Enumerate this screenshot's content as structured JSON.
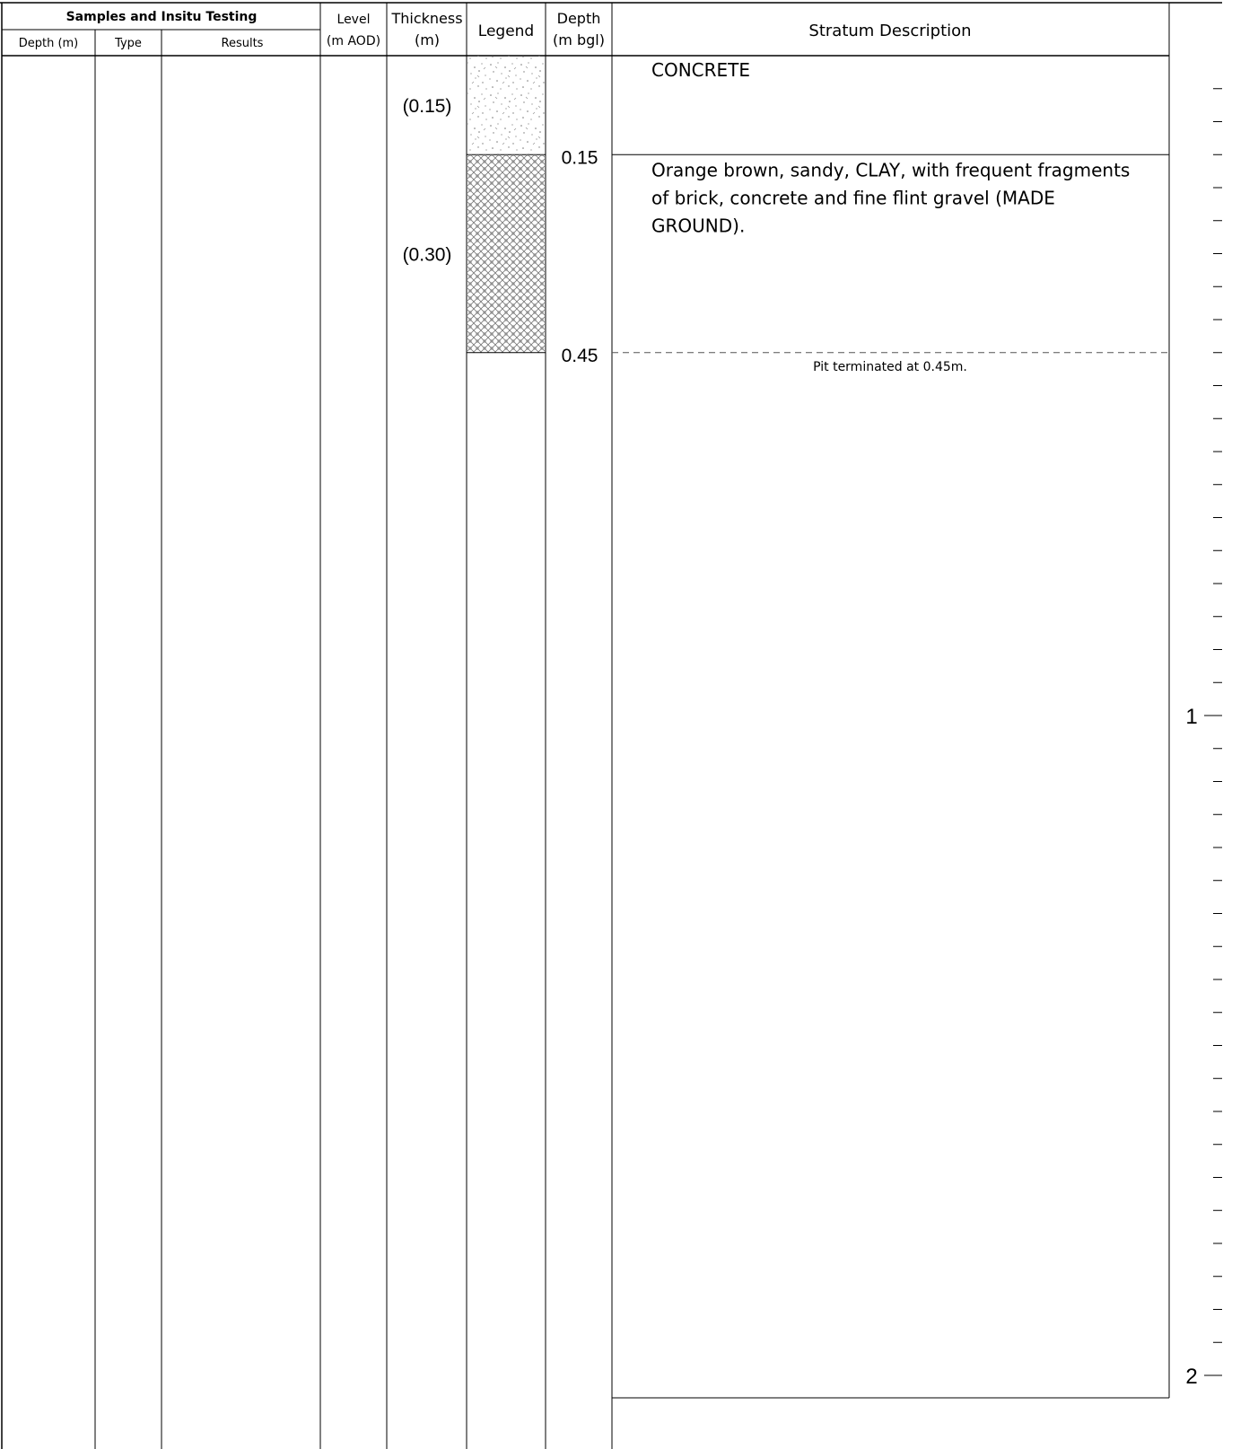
{
  "header": {
    "samples_group": "Samples and Insitu Testing",
    "col_depth": "Depth (m)",
    "col_type": "Type",
    "col_results": "Results",
    "level_line1": "Level",
    "level_line2": "(m AOD)",
    "thickness_line1": "Thickness",
    "thickness_line2": "(m)",
    "legend": "Legend",
    "depth_line1": "Depth",
    "depth_line2": "(m bgl)",
    "stratum": "Stratum Description"
  },
  "strata": [
    {
      "top_depth_m": 0.0,
      "base_depth_m": 0.15,
      "thickness_label": "(0.15)",
      "depth_label": "0.15",
      "pattern": "concrete-stipple",
      "description_lines": [
        "CONCRETE"
      ]
    },
    {
      "top_depth_m": 0.15,
      "base_depth_m": 0.45,
      "thickness_label": "(0.30)",
      "depth_label": "0.45",
      "pattern": "made-ground-crosshatch",
      "description_lines": [
        "Orange brown, sandy, CLAY, with frequent fragments",
        "of brick, concrete and fine flint gravel (MADE",
        "GROUND)."
      ]
    }
  ],
  "termination": {
    "depth_m": 0.45,
    "text": "Pit terminated at 0.45m."
  },
  "depth_scale": {
    "start_m": 0,
    "end_m": 2,
    "minor_step_m": 0.1,
    "major_labels": [
      "1",
      "2"
    ]
  },
  "colors": {
    "line": "#000000",
    "dashed": "#555555",
    "hatch": "#777777"
  }
}
